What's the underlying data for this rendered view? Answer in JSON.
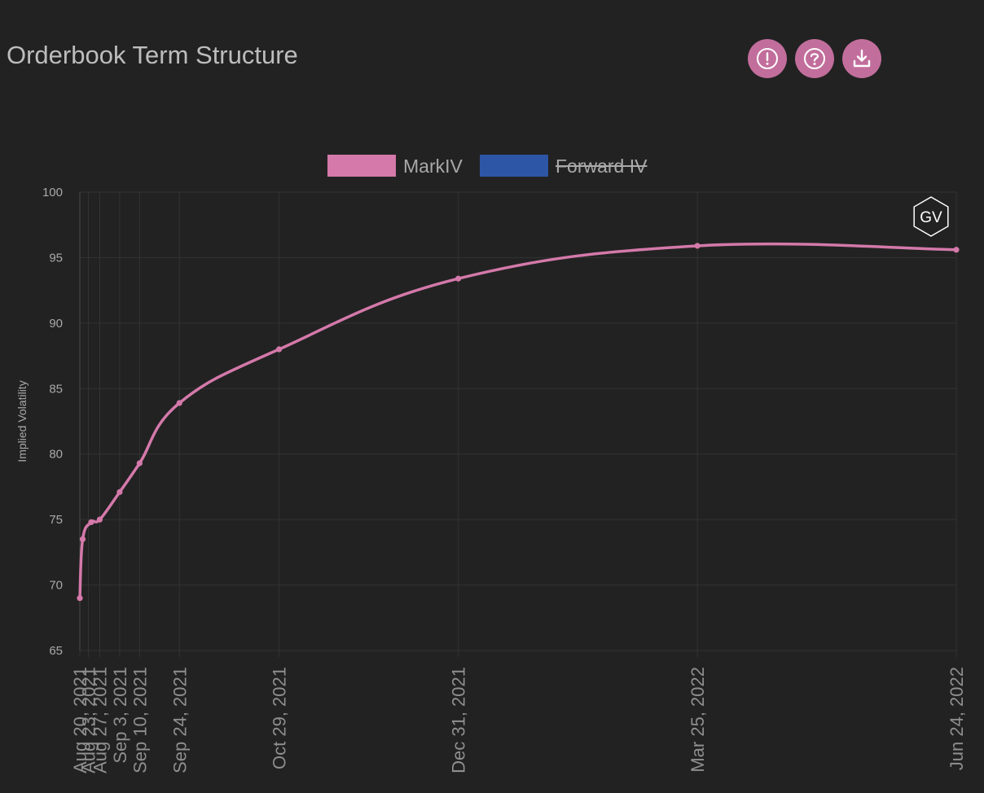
{
  "header": {
    "title": "Orderbook Term Structure",
    "buttons": [
      {
        "name": "info-button",
        "icon": "alert-circle-icon"
      },
      {
        "name": "help-button",
        "icon": "question-circle-icon"
      },
      {
        "name": "download-button",
        "icon": "download-icon"
      }
    ]
  },
  "colors": {
    "background": "#222222",
    "accent": "#c26e9c",
    "markiv": "#d479aa",
    "forward_iv": "#2d56a6",
    "grid": "#333333",
    "axis_text": "#a9a9a9"
  },
  "chart_data": {
    "type": "line",
    "watermark": "GV",
    "ylabel": "Implied Volatility",
    "ylim": [
      65,
      100
    ],
    "yticks": [
      65,
      70,
      75,
      80,
      85,
      90,
      95,
      100
    ],
    "x_start": "Aug 20, 2021",
    "x_end": "Jun 24, 2022",
    "xticks": [
      "Aug 20, 2021",
      "Aug 23, 2021",
      "Aug 27, 2021",
      "Sep 3, 2021",
      "Sep 10, 2021",
      "Sep 24, 2021",
      "Oct 29, 2021",
      "Dec 31, 2021",
      "Mar 25, 2022",
      "Jun 24, 2022"
    ],
    "legend": {
      "placement": "top-center",
      "entries": [
        {
          "label": "MarkIV",
          "color": "#d479aa",
          "hidden": false
        },
        {
          "label": "Forward IV",
          "color": "#2d56a6",
          "hidden": true
        }
      ]
    },
    "series": [
      {
        "name": "MarkIV",
        "color": "#d479aa",
        "x": [
          "Aug 20, 2021",
          "Aug 21, 2021",
          "Aug 24, 2021",
          "Aug 27, 2021",
          "Sep 3, 2021",
          "Sep 10, 2021",
          "Sep 24, 2021",
          "Oct 29, 2021",
          "Dec 31, 2021",
          "Mar 25, 2022",
          "Jun 24, 2022"
        ],
        "values": [
          69.0,
          73.5,
          74.8,
          75.0,
          77.1,
          79.3,
          83.9,
          88.0,
          93.4,
          95.9,
          95.6
        ]
      }
    ]
  }
}
